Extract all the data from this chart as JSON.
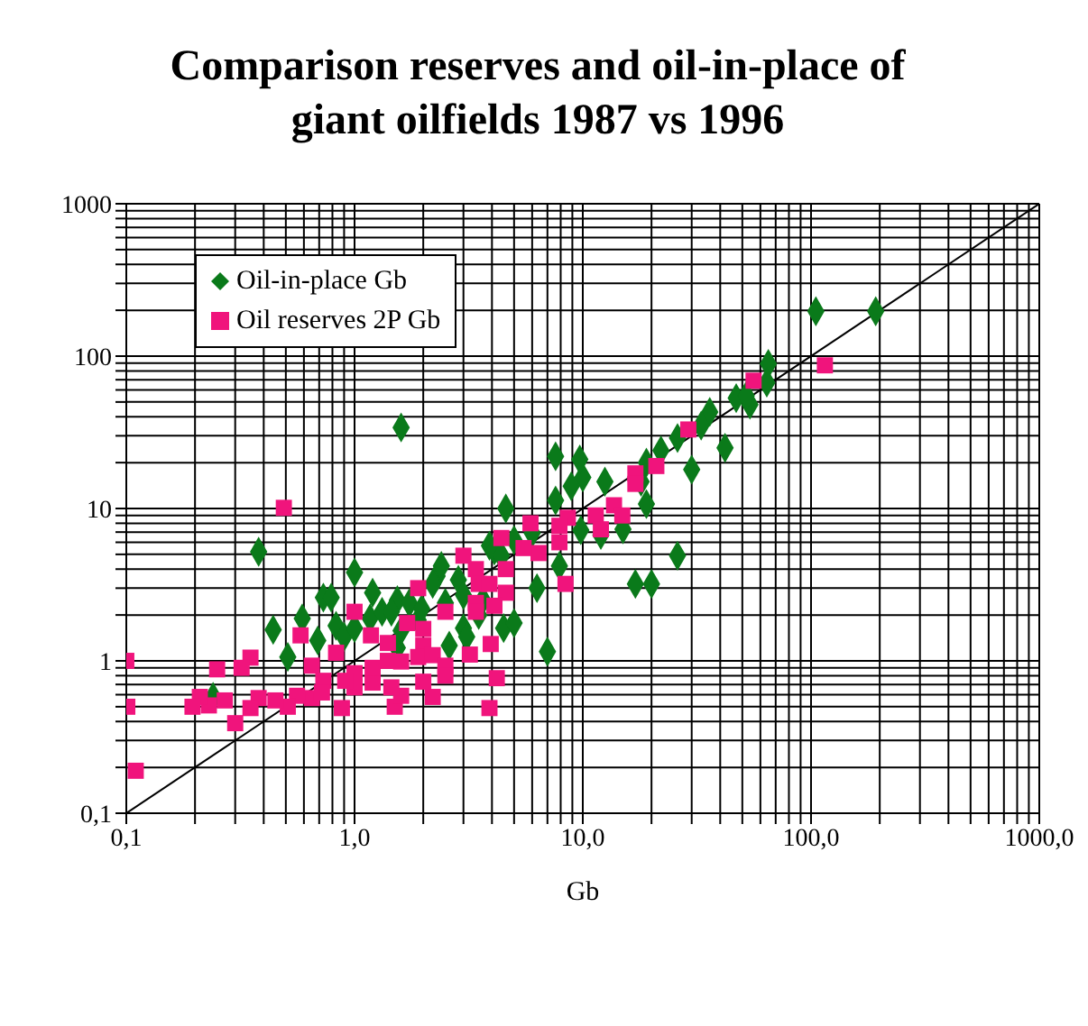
{
  "chart_data": {
    "type": "scatter",
    "title": "Comparison reserves and oil-in-place of giant oilfields 1987 vs 1996",
    "xlabel": "Gb",
    "log": "xy",
    "grid": true,
    "legend": "top left",
    "xlim": [
      0.1,
      1000
    ],
    "ylim": [
      0.1,
      1000
    ],
    "xticks": [
      {
        "value": 0.1,
        "label": "0,1"
      },
      {
        "value": 0.2,
        "label": null
      },
      {
        "value": 0.3,
        "label": null
      },
      {
        "value": 0.4,
        "label": null
      },
      {
        "value": 0.5,
        "label": null
      },
      {
        "value": 0.6,
        "label": null
      },
      {
        "value": 0.7,
        "label": null
      },
      {
        "value": 0.8,
        "label": null
      },
      {
        "value": 0.9,
        "label": null
      },
      {
        "value": 1,
        "label": "1,0"
      },
      {
        "value": 2,
        "label": null
      },
      {
        "value": 3,
        "label": null
      },
      {
        "value": 4,
        "label": null
      },
      {
        "value": 5,
        "label": null
      },
      {
        "value": 6,
        "label": null
      },
      {
        "value": 7,
        "label": null
      },
      {
        "value": 8,
        "label": null
      },
      {
        "value": 9,
        "label": null
      },
      {
        "value": 10,
        "label": "10,0"
      },
      {
        "value": 20,
        "label": null
      },
      {
        "value": 30,
        "label": null
      },
      {
        "value": 40,
        "label": null
      },
      {
        "value": 50,
        "label": null
      },
      {
        "value": 60,
        "label": null
      },
      {
        "value": 70,
        "label": null
      },
      {
        "value": 80,
        "label": null
      },
      {
        "value": 90,
        "label": null
      },
      {
        "value": 100,
        "label": "100,0"
      },
      {
        "value": 200,
        "label": null
      },
      {
        "value": 300,
        "label": null
      },
      {
        "value": 400,
        "label": null
      },
      {
        "value": 500,
        "label": null
      },
      {
        "value": 600,
        "label": null
      },
      {
        "value": 700,
        "label": null
      },
      {
        "value": 800,
        "label": null
      },
      {
        "value": 900,
        "label": null
      },
      {
        "value": 1000,
        "label": "1000,0"
      }
    ],
    "yticks": [
      {
        "value": 0.1,
        "label": "0,1"
      },
      {
        "value": 0.2,
        "label": null
      },
      {
        "value": 0.3,
        "label": null
      },
      {
        "value": 0.4,
        "label": null
      },
      {
        "value": 0.5,
        "label": null
      },
      {
        "value": 0.6,
        "label": null
      },
      {
        "value": 0.7,
        "label": null
      },
      {
        "value": 0.8,
        "label": null
      },
      {
        "value": 0.9,
        "label": null
      },
      1,
      {
        "value": 2,
        "label": null
      },
      {
        "value": 3,
        "label": null
      },
      {
        "value": 4,
        "label": null
      },
      {
        "value": 5,
        "label": null
      },
      {
        "value": 6,
        "label": null
      },
      {
        "value": 7,
        "label": null
      },
      {
        "value": 8,
        "label": null
      },
      {
        "value": 9,
        "label": null
      },
      10,
      {
        "value": 20,
        "label": null
      },
      {
        "value": 30,
        "label": null
      },
      {
        "value": 40,
        "label": null
      },
      {
        "value": 50,
        "label": null
      },
      {
        "value": 60,
        "label": null
      },
      {
        "value": 70,
        "label": null
      },
      {
        "value": 80,
        "label": null
      },
      {
        "value": 90,
        "label": null
      },
      100,
      {
        "value": 200,
        "label": null
      },
      {
        "value": 300,
        "label": null
      },
      {
        "value": 400,
        "label": null
      },
      {
        "value": 500,
        "label": null
      },
      {
        "value": 600,
        "label": null
      },
      {
        "value": 700,
        "label": null
      },
      {
        "value": 800,
        "label": null
      },
      {
        "value": 900,
        "label": null
      },
      1000
    ],
    "series": [
      {
        "name": "Oil-in-place Gb",
        "color": "#0a7a1a",
        "marker": "diamond",
        "x": [
          105,
          192,
          65,
          64,
          47,
          54,
          52,
          36,
          33,
          26,
          22,
          19,
          42,
          30,
          18,
          12.5,
          10,
          8.9,
          7.6,
          9.7,
          1.6,
          19,
          15,
          12,
          9.8,
          7.6,
          4.6,
          26,
          17,
          20,
          7.9,
          6.3,
          7,
          0.38,
          1,
          1.2,
          0.73,
          0.79,
          0.59,
          0.44,
          0.69,
          0.51,
          0.24,
          0.83,
          0.9,
          1,
          1.17,
          1.32,
          1.54,
          1.74,
          1.45,
          2.3,
          2.4,
          2.2,
          2.85,
          3,
          3.9,
          4.1,
          4.4,
          5,
          6,
          3,
          3.1,
          2.6,
          4.5,
          5,
          3.5,
          1.9,
          1.54,
          1.6,
          1.97,
          2.5,
          3.65
        ],
        "values": [
          197,
          197,
          89,
          67,
          53,
          48,
          55,
          43,
          35,
          29,
          24,
          20,
          25,
          18,
          15,
          15,
          16,
          14,
          22,
          21,
          34,
          10.7,
          7.3,
          6.7,
          7.2,
          11.3,
          10,
          4.9,
          3.2,
          3.2,
          4.2,
          3,
          1.15,
          5.2,
          3.8,
          2.8,
          2.6,
          2.6,
          1.9,
          1.6,
          1.36,
          1.06,
          0.58,
          1.7,
          1.44,
          1.64,
          1.9,
          2.1,
          2.5,
          2.4,
          2.1,
          3.6,
          4.2,
          3.2,
          3.4,
          2.7,
          5.7,
          5.3,
          4.9,
          6.2,
          6.9,
          1.64,
          1.44,
          1.26,
          1.64,
          1.77,
          2,
          1.85,
          1.22,
          1.58,
          2.2,
          2.4,
          2.5
        ]
      },
      {
        "name": "Oil reserves 2P Gb",
        "color": "#f0147c",
        "marker": "square",
        "x": [
          115,
          56,
          29,
          21,
          17,
          17,
          13.7,
          14.9,
          11.4,
          12,
          8.6,
          7.9,
          7.9,
          5.9,
          6.4,
          5.5,
          4.4,
          8.4,
          3,
          3.4,
          4.6,
          3.5,
          3.9,
          4.6,
          1.9,
          3.4,
          4.1,
          2.5,
          3.4,
          1,
          0.58,
          0.49,
          1.7,
          2,
          1.18,
          1.4,
          2,
          1.9,
          2.2,
          3.95,
          3.2,
          2.5,
          2.5,
          4.2,
          2,
          2.2,
          1.5,
          3.9,
          1.6,
          1.45,
          1.2,
          1.2,
          1.4,
          1.6,
          1,
          1,
          0.88,
          0.83,
          0.73,
          0.65,
          0.65,
          0.56,
          0.51,
          0.45,
          0.38,
          0.35,
          0.35,
          0.32,
          0.25,
          0.27,
          0.23,
          0.21,
          0.195,
          0.3,
          0.101,
          0.1,
          0.11,
          0.72,
          0.91
        ],
        "values": [
          87,
          69,
          33,
          19,
          17,
          14.5,
          10.5,
          9,
          9,
          7.3,
          8.7,
          7.7,
          6,
          8,
          5.1,
          5.5,
          6.4,
          3.2,
          4.9,
          4,
          4,
          3.2,
          3.2,
          2.8,
          3,
          2.4,
          2.3,
          2.1,
          2.1,
          2.1,
          1.47,
          10.1,
          1.77,
          1.62,
          1.47,
          1.31,
          1.26,
          1.06,
          1.09,
          1.29,
          1.1,
          0.93,
          0.8,
          0.77,
          0.73,
          0.58,
          0.5,
          0.49,
          0.59,
          0.67,
          0.72,
          0.9,
          1,
          0.99,
          0.83,
          0.67,
          0.49,
          1.13,
          0.74,
          0.93,
          0.57,
          0.59,
          0.5,
          0.55,
          0.57,
          0.49,
          1.05,
          0.9,
          0.88,
          0.55,
          0.51,
          0.58,
          0.5,
          0.39,
          0.5,
          1,
          0.19,
          0.62,
          0.74
        ]
      },
      {
        "type": "line",
        "color": "#000000",
        "marker": "none",
        "x": [
          0.1,
          1000
        ],
        "values": [
          0.1,
          1000
        ]
      }
    ]
  }
}
